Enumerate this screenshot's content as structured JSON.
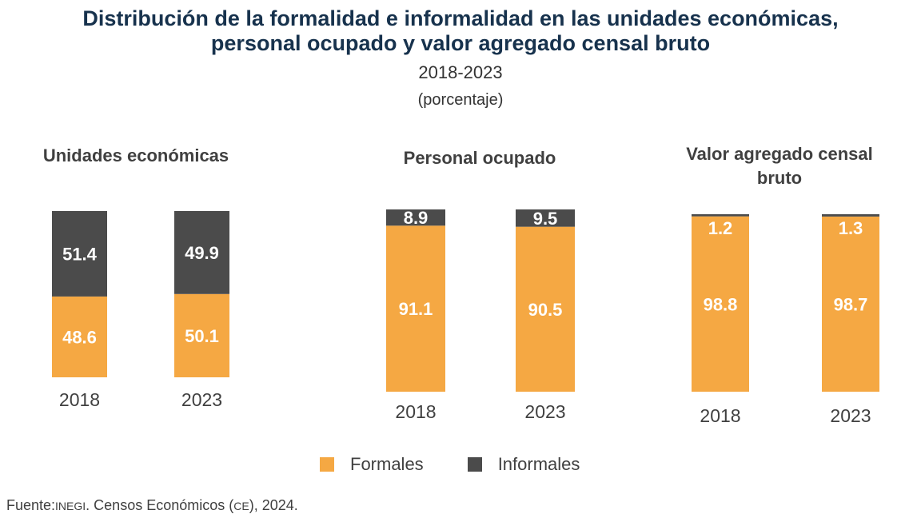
{
  "chart_data": [
    {
      "type": "bar",
      "stacked": true,
      "title": "Unidades económicas",
      "categories": [
        "2018",
        "2023"
      ],
      "series": [
        {
          "name": "Formales",
          "values": [
            48.6,
            50.1
          ]
        },
        {
          "name": "Informales",
          "values": [
            51.4,
            49.9
          ]
        }
      ],
      "ylim": [
        0,
        100
      ]
    },
    {
      "type": "bar",
      "stacked": true,
      "title": "Personal ocupado",
      "categories": [
        "2018",
        "2023"
      ],
      "series": [
        {
          "name": "Formales",
          "values": [
            91.1,
            90.5
          ]
        },
        {
          "name": "Informales",
          "values": [
            8.9,
            9.5
          ]
        }
      ],
      "ylim": [
        0,
        100
      ]
    },
    {
      "type": "bar",
      "stacked": true,
      "title": "Valor agregado censal bruto",
      "categories": [
        "2018",
        "2023"
      ],
      "series": [
        {
          "name": "Formales",
          "values": [
            98.8,
            98.7
          ]
        },
        {
          "name": "Informales",
          "values": [
            1.2,
            1.3
          ]
        }
      ],
      "ylim": [
        0,
        100
      ]
    }
  ],
  "header": {
    "title_line1": "Distribución de la formalidad e informalidad en las unidades económicas,",
    "title_line2": "personal ocupado y valor agregado censal bruto",
    "period": "2018-2023",
    "unit": "(porcentaje)"
  },
  "panels": {
    "p1": "Unidades económicas",
    "p2": "Personal ocupado",
    "p3a": "Valor agregado censal",
    "p3b": "bruto"
  },
  "legend": {
    "formales": "Formales",
    "informales": "Informales"
  },
  "colors": {
    "formales": "#f5a843",
    "informales": "#4b4b4b"
  },
  "source": {
    "label": "Fuente:",
    "org": "INEGI",
    "text": ". Censos Económicos (",
    "ce": "CE",
    "end": "), 2024."
  }
}
